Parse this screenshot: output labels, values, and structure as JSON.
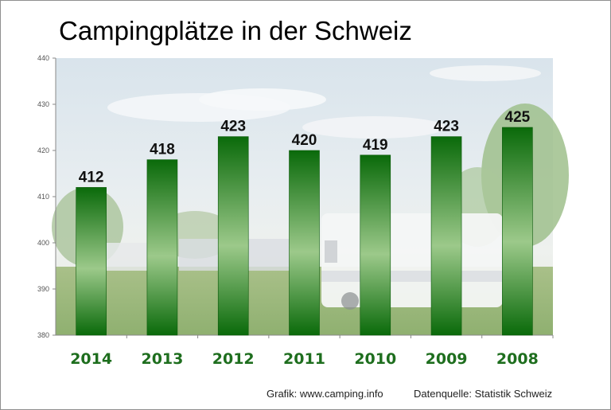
{
  "chart_data": {
    "type": "bar",
    "title": "Campingplätze in der Schweiz",
    "categories": [
      "2014",
      "2013",
      "2012",
      "2011",
      "2010",
      "2009",
      "2008"
    ],
    "values": [
      412,
      418,
      423,
      420,
      419,
      423,
      425
    ],
    "ylim": [
      380,
      440
    ],
    "yticks": [
      380,
      390,
      400,
      410,
      420,
      430,
      440
    ],
    "xlabel": "",
    "ylabel": "",
    "bar_color": "#2e8b2e",
    "category_label_color": "#1e6e1e",
    "grid": false,
    "legend": "none"
  },
  "footer": {
    "source_graphic": "Grafik: www.camping.info",
    "source_data": "Datenquelle: Statistik Schweiz"
  }
}
